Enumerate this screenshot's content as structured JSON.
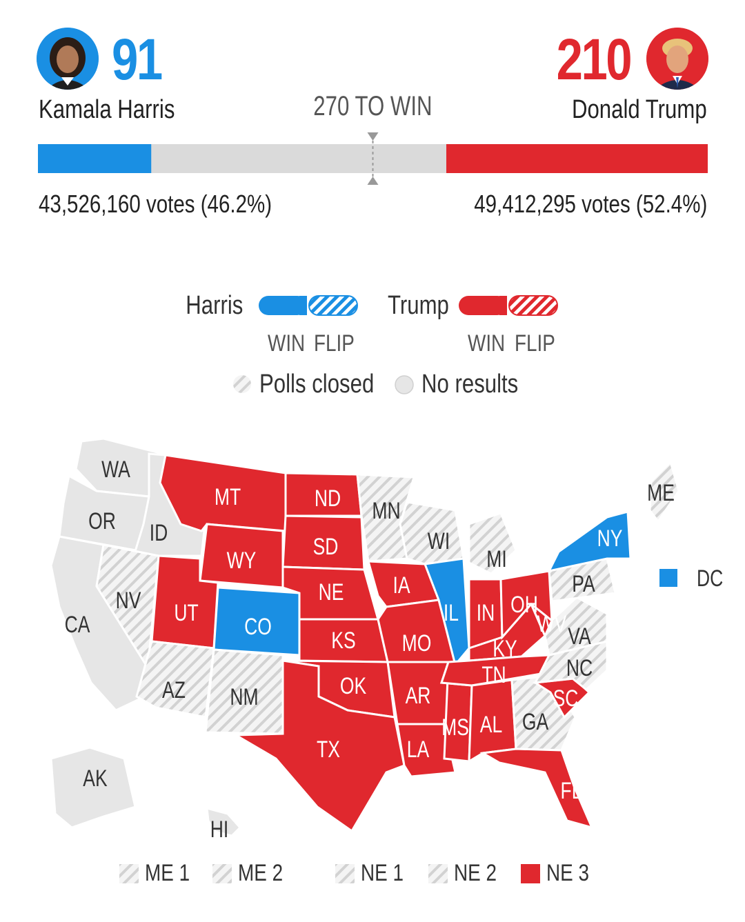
{
  "colors": {
    "harris": "#1a8fe3",
    "trump": "#e0282e",
    "undecided": "#d9d9d9",
    "no_results": "#e6e6e6"
  },
  "header": {
    "harris": {
      "name": "Kamala Harris",
      "electoral_votes": "91",
      "votes_text": "43,526,160 votes (46.2%)",
      "popular_votes": 43526160,
      "popular_pct": 46.2,
      "avatar_icon": "harris-portrait"
    },
    "trump": {
      "name": "Donald Trump",
      "electoral_votes": "210",
      "votes_text": "49,412,295 votes (52.4%)",
      "popular_votes": 49412295,
      "popular_pct": 52.4,
      "avatar_icon": "trump-portrait"
    },
    "threshold_label": "270 TO WIN"
  },
  "progress": {
    "total": 538,
    "harris": 91,
    "trump": 210,
    "threshold": 270
  },
  "legend": {
    "harris_label": "Harris",
    "trump_label": "Trump",
    "win_label": "WIN",
    "flip_label": "FLIP",
    "polls_closed_label": "Polls closed",
    "no_results_label": "No results"
  },
  "map": {
    "states": [
      {
        "abbr": "WA",
        "status": "no-results"
      },
      {
        "abbr": "OR",
        "status": "no-results"
      },
      {
        "abbr": "CA",
        "status": "no-results"
      },
      {
        "abbr": "ID",
        "status": "no-results"
      },
      {
        "abbr": "NV",
        "status": "polls-closed"
      },
      {
        "abbr": "MT",
        "status": "trump"
      },
      {
        "abbr": "WY",
        "status": "trump"
      },
      {
        "abbr": "UT",
        "status": "trump"
      },
      {
        "abbr": "CO",
        "status": "harris"
      },
      {
        "abbr": "AZ",
        "status": "polls-closed"
      },
      {
        "abbr": "NM",
        "status": "polls-closed"
      },
      {
        "abbr": "ND",
        "status": "trump"
      },
      {
        "abbr": "SD",
        "status": "trump"
      },
      {
        "abbr": "NE",
        "status": "trump"
      },
      {
        "abbr": "KS",
        "status": "trump"
      },
      {
        "abbr": "OK",
        "status": "trump"
      },
      {
        "abbr": "TX",
        "status": "trump"
      },
      {
        "abbr": "MN",
        "status": "polls-closed"
      },
      {
        "abbr": "IA",
        "status": "trump"
      },
      {
        "abbr": "MO",
        "status": "trump"
      },
      {
        "abbr": "AR",
        "status": "trump"
      },
      {
        "abbr": "LA",
        "status": "trump"
      },
      {
        "abbr": "WI",
        "status": "polls-closed"
      },
      {
        "abbr": "IL",
        "status": "harris"
      },
      {
        "abbr": "MS",
        "status": "trump"
      },
      {
        "abbr": "MI",
        "status": "polls-closed"
      },
      {
        "abbr": "IN",
        "status": "trump"
      },
      {
        "abbr": "KY",
        "status": "trump"
      },
      {
        "abbr": "TN",
        "status": "trump"
      },
      {
        "abbr": "AL",
        "status": "trump"
      },
      {
        "abbr": "OH",
        "status": "trump"
      },
      {
        "abbr": "WV",
        "status": "trump"
      },
      {
        "abbr": "GA",
        "status": "polls-closed"
      },
      {
        "abbr": "FL",
        "status": "trump"
      },
      {
        "abbr": "SC",
        "status": "trump"
      },
      {
        "abbr": "NC",
        "status": "polls-closed"
      },
      {
        "abbr": "VA",
        "status": "polls-closed"
      },
      {
        "abbr": "PA",
        "status": "polls-closed"
      },
      {
        "abbr": "NY",
        "status": "harris"
      },
      {
        "abbr": "ME",
        "status": "polls-closed"
      },
      {
        "abbr": "AK",
        "status": "no-results"
      },
      {
        "abbr": "HI",
        "status": "no-results"
      },
      {
        "abbr": "DC",
        "status": "harris"
      }
    ],
    "districts": [
      {
        "label": "ME 1",
        "status": "polls-closed"
      },
      {
        "label": "ME 2",
        "status": "polls-closed"
      },
      {
        "label": "NE 1",
        "status": "polls-closed"
      },
      {
        "label": "NE 2",
        "status": "polls-closed"
      },
      {
        "label": "NE 3",
        "status": "trump"
      }
    ]
  }
}
